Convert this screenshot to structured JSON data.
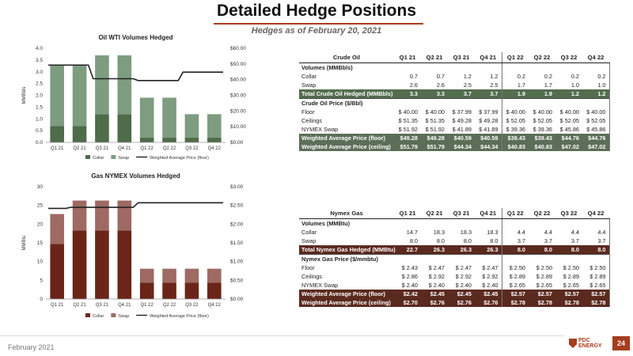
{
  "page": {
    "title": "Detailed Hedge Positions",
    "subtitle": "Hedges as of February 20, 2021",
    "footer_date": "February 2021",
    "page_number": "24",
    "logo_text_1": "PDC",
    "logo_text_2": "ENERGY"
  },
  "chart_data": [
    {
      "type": "bar",
      "title": "Oil WTI Volumes Hedged",
      "ylabel": "MMBbls",
      "categories": [
        "Q1 21",
        "Q2 21",
        "Q3 21",
        "Q4 21",
        "Q1 22",
        "Q2 22",
        "Q3 22",
        "Q4 22"
      ],
      "series": [
        {
          "name": "Collar",
          "kind": "bar",
          "color": "#4e6b4a",
          "values": [
            0.7,
            0.7,
            1.2,
            1.2,
            0.2,
            0.2,
            0.2,
            0.2
          ]
        },
        {
          "name": "Swap",
          "kind": "bar",
          "color": "#7d9c80",
          "values": [
            2.6,
            2.6,
            2.5,
            2.5,
            1.7,
            1.7,
            1.0,
            1.0
          ]
        },
        {
          "name": "Weighted Average Price (floor)",
          "kind": "line",
          "axis": "right",
          "color": "#222222",
          "values": [
            49.28,
            49.28,
            40.59,
            40.59,
            39.43,
            39.43,
            44.76,
            44.76
          ]
        }
      ],
      "ylim": [
        0,
        4.0
      ],
      "yticks": [
        "0.0",
        "0.5",
        "1.0",
        "1.5",
        "2.0",
        "2.5",
        "3.0",
        "3.5",
        "4.0"
      ],
      "y2lim": [
        0,
        60
      ],
      "y2ticks": [
        "$0.00",
        "$10.00",
        "$20.00",
        "$30.00",
        "$40.00",
        "$50.00",
        "$60.00"
      ],
      "legend": "bottom"
    },
    {
      "type": "bar",
      "title": "Gas NYMEX Volumes Hedged",
      "ylabel": "MMBtu",
      "categories": [
        "Q1 21",
        "Q2 21",
        "Q3 21",
        "Q4 21",
        "Q1 22",
        "Q2 22",
        "Q3 22",
        "Q4 22"
      ],
      "series": [
        {
          "name": "Collar",
          "kind": "bar",
          "color": "#6b2418",
          "values": [
            14.7,
            18.3,
            18.3,
            18.3,
            4.4,
            4.4,
            4.4,
            4.4
          ]
        },
        {
          "name": "Swap",
          "kind": "bar",
          "color": "#9e6a63",
          "values": [
            8.0,
            8.0,
            8.0,
            8.0,
            3.7,
            3.7,
            3.7,
            3.7
          ]
        },
        {
          "name": "Weighted Average Price (floor)",
          "kind": "line",
          "axis": "right",
          "color": "#222222",
          "values": [
            2.42,
            2.45,
            2.45,
            2.45,
            2.57,
            2.57,
            2.57,
            2.57
          ]
        }
      ],
      "ylim": [
        0,
        30
      ],
      "yticks": [
        "0",
        "5",
        "10",
        "15",
        "20",
        "25",
        "30"
      ],
      "y2lim": [
        0,
        3.0
      ],
      "y2ticks": [
        "$0.00",
        "$0.50",
        "$1.00",
        "$1.50",
        "$2.00",
        "$2.50",
        "$3.00"
      ],
      "legend": "bottom"
    },
    {
      "type": "table",
      "title": "Crude Oil",
      "columns": [
        "Q1 21",
        "Q2 21",
        "Q3 21",
        "Q4 21",
        "Q1 22",
        "Q2 22",
        "Q3 22",
        "Q4 22"
      ],
      "rows": [
        {
          "label": "Volumes (MMBbls)",
          "style": "sec",
          "values": [
            "",
            "",
            "",
            "",
            "",
            "",
            "",
            ""
          ]
        },
        {
          "label": "Collar",
          "style": "",
          "values": [
            "0.7",
            "0.7",
            "1.2",
            "1.2",
            "0.2",
            "0.2",
            "0.2",
            "0.2"
          ]
        },
        {
          "label": "Swap",
          "style": "",
          "values": [
            "2.6",
            "2.6",
            "2.5",
            "2.5",
            "1.7",
            "1.7",
            "1.0",
            "1.0"
          ]
        },
        {
          "label": "Total Crude Oil Hedged (MMBbls)",
          "style": "total",
          "values": [
            "3.3",
            "3.3",
            "3.7",
            "3.7",
            "1.9",
            "1.9",
            "1.2",
            "1.2"
          ]
        },
        {
          "label": "Crude Oil Price ($/Bbl)",
          "style": "sec",
          "values": [
            "",
            "",
            "",
            "",
            "",
            "",
            "",
            ""
          ]
        },
        {
          "label": "Floor",
          "style": "",
          "values": [
            "$ 40.00",
            "$ 40.00",
            "$ 37.99",
            "$ 37.99",
            "$ 40.00",
            "$ 40.00",
            "$ 40.00",
            "$ 40.00"
          ]
        },
        {
          "label": "Ceilings",
          "style": "",
          "values": [
            "$ 51.35",
            "$ 51.35",
            "$ 49.28",
            "$ 49.28",
            "$ 52.05",
            "$ 52.05",
            "$ 52.05",
            "$ 52.05"
          ]
        },
        {
          "label": "NYMEX Swap",
          "style": "",
          "values": [
            "$ 51.92",
            "$ 51.92",
            "$ 41.89",
            "$ 41.89",
            "$ 39.36",
            "$ 39.36",
            "$ 45.86",
            "$ 45.86"
          ]
        },
        {
          "label": "Weighted Average Price (floor)",
          "style": "wa",
          "values": [
            "$49.28",
            "$49.28",
            "$40.59",
            "$40.59",
            "$39.43",
            "$39.43",
            "$44.76",
            "$44.76"
          ]
        },
        {
          "label": "Weighted Average Price (ceiling)",
          "style": "wa",
          "values": [
            "$51.79",
            "$51.79",
            "$44.34",
            "$44.34",
            "$40.83",
            "$40.83",
            "$47.02",
            "$47.02"
          ]
        }
      ]
    },
    {
      "type": "table",
      "title": "Nymex Gas",
      "columns": [
        "Q1 21",
        "Q2 21",
        "Q3 21",
        "Q4 21",
        "Q1 22",
        "Q2 22",
        "Q3 22",
        "Q4 22"
      ],
      "rows": [
        {
          "label": "Volumes (MMBtu)",
          "style": "sec",
          "values": [
            "",
            "",
            "",
            "",
            "",
            "",
            "",
            ""
          ]
        },
        {
          "label": "Collar",
          "style": "",
          "values": [
            "14.7",
            "18.3",
            "18.3",
            "18.3",
            "4.4",
            "4.4",
            "4.4",
            "4.4"
          ]
        },
        {
          "label": "Swap",
          "style": "",
          "values": [
            "8.0",
            "8.0",
            "8.0",
            "8.0",
            "3.7",
            "3.7",
            "3.7",
            "3.7"
          ]
        },
        {
          "label": "Total Nymex Gas Hedged (MMBtu)",
          "style": "total",
          "values": [
            "22.7",
            "26.3",
            "26.3",
            "26.3",
            "8.0",
            "8.0",
            "8.0",
            "8.0"
          ]
        },
        {
          "label": "Nymex Gas Price ($/mmbtu)",
          "style": "sec",
          "values": [
            "",
            "",
            "",
            "",
            "",
            "",
            "",
            ""
          ]
        },
        {
          "label": "Floor",
          "style": "",
          "values": [
            "$ 2.43",
            "$ 2.47",
            "$ 2.47",
            "$ 2.47",
            "$ 2.50",
            "$ 2.50",
            "$ 2.50",
            "$ 2.50"
          ]
        },
        {
          "label": "Ceilings",
          "style": "",
          "values": [
            "$ 2.86",
            "$ 2.92",
            "$ 2.92",
            "$ 2.92",
            "$ 2.89",
            "$ 2.89",
            "$ 2.89",
            "$ 2.89"
          ]
        },
        {
          "label": "NYMEX Swap",
          "style": "",
          "values": [
            "$ 2.40",
            "$ 2.40",
            "$ 2.40",
            "$ 2.40",
            "$ 2.65",
            "$ 2.65",
            "$ 2.65",
            "$ 2.65"
          ]
        },
        {
          "label": "Weighted Average Price (floor)",
          "style": "wa",
          "values": [
            "$2.42",
            "$2.45",
            "$2.45",
            "$2.45",
            "$2.57",
            "$2.57",
            "$2.57",
            "$2.57"
          ]
        },
        {
          "label": "Weighted Average Price (ceiling)",
          "style": "wa",
          "values": [
            "$2.70",
            "$2.76",
            "$2.76",
            "$2.76",
            "$2.78",
            "$2.78",
            "$2.78",
            "$2.78"
          ]
        }
      ]
    }
  ]
}
